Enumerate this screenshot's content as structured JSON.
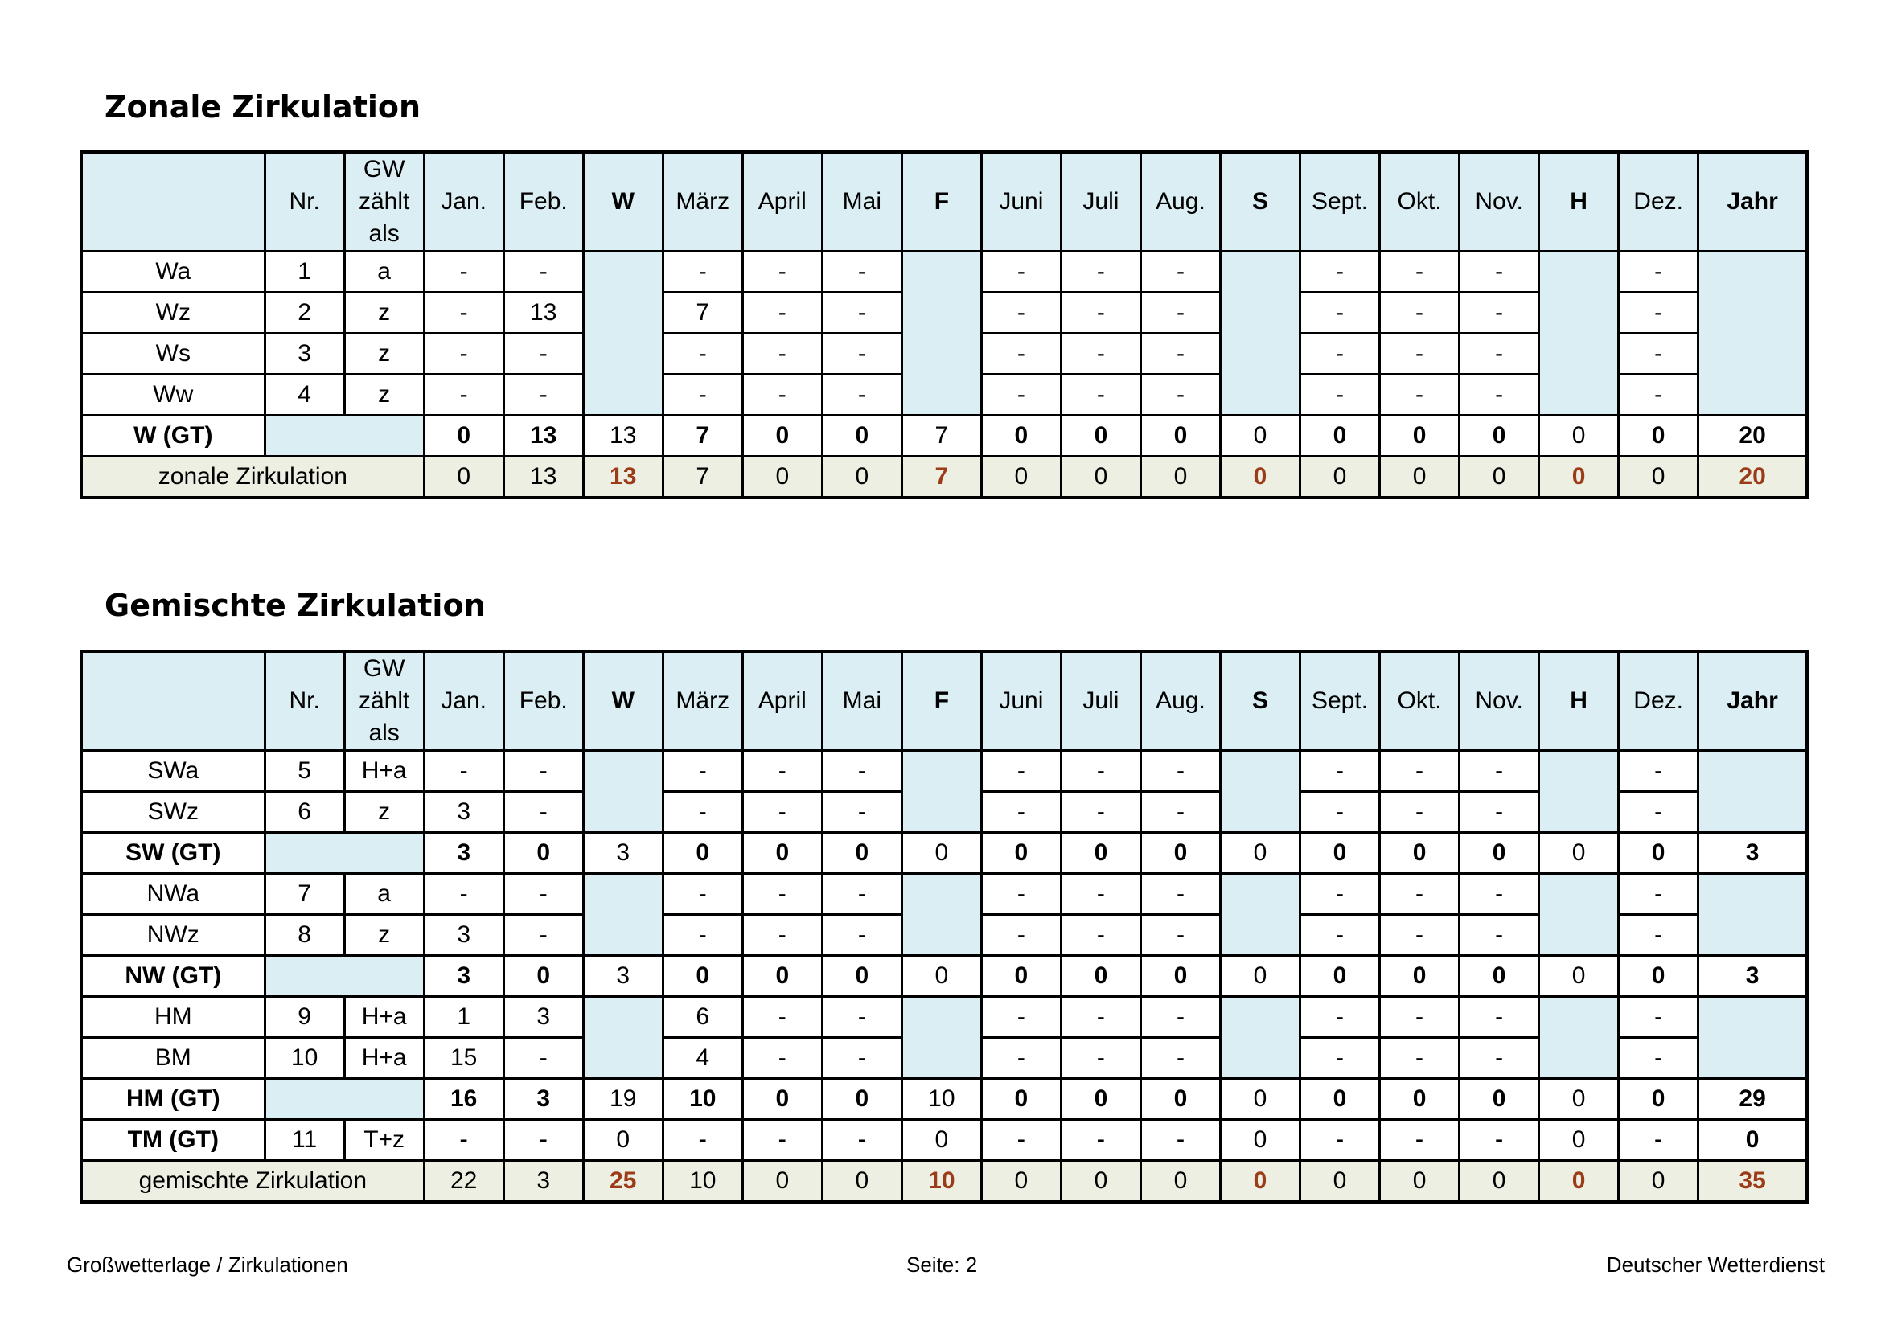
{
  "sections": [
    {
      "title": "Zonale Zirkulation",
      "header": [
        "",
        "Nr.",
        "GW zählt als",
        "Jan.",
        "Feb.",
        "W",
        "März",
        "April",
        "Mai",
        "F",
        "Juni",
        "Juli",
        "Aug.",
        "S",
        "Sept.",
        "Okt.",
        "Nov.",
        "H",
        "Dez.",
        "Jahr"
      ],
      "gw_lines": [
        "GW",
        "zählt",
        "als"
      ],
      "rows": [
        {
          "type": "normal",
          "label": "Wa",
          "nr": "1",
          "gw": "a",
          "months": [
            "-",
            "-",
            "-",
            "-",
            "-",
            "-",
            "-",
            "-",
            "-",
            "-",
            "-",
            "-"
          ]
        },
        {
          "type": "normal",
          "label": "Wz",
          "nr": "2",
          "gw": "z",
          "months": [
            "-",
            "13",
            "7",
            "-",
            "-",
            "-",
            "-",
            "-",
            "-",
            "-",
            "-",
            "-"
          ]
        },
        {
          "type": "normal",
          "label": "Ws",
          "nr": "3",
          "gw": "z",
          "months": [
            "-",
            "-",
            "-",
            "-",
            "-",
            "-",
            "-",
            "-",
            "-",
            "-",
            "-",
            "-"
          ]
        },
        {
          "type": "normal",
          "label": "Ww",
          "nr": "4",
          "gw": "z",
          "months": [
            "-",
            "-",
            "-",
            "-",
            "-",
            "-",
            "-",
            "-",
            "-",
            "-",
            "-",
            "-"
          ]
        },
        {
          "type": "gt",
          "label": "W (GT)",
          "values": [
            "0",
            "13",
            "13",
            "7",
            "0",
            "0",
            "7",
            "0",
            "0",
            "0",
            "0",
            "0",
            "0",
            "0",
            "0",
            "0",
            "20"
          ]
        },
        {
          "type": "total",
          "label": "zonale Zirkulation",
          "values": [
            "0",
            "13",
            "13",
            "7",
            "0",
            "0",
            "7",
            "0",
            "0",
            "0",
            "0",
            "0",
            "0",
            "0",
            "0",
            "0",
            "20"
          ]
        }
      ]
    },
    {
      "title": "Gemischte Zirkulation",
      "header": [
        "",
        "Nr.",
        "GW zählt als",
        "Jan.",
        "Feb.",
        "W",
        "März",
        "April",
        "Mai",
        "F",
        "Juni",
        "Juli",
        "Aug.",
        "S",
        "Sept.",
        "Okt.",
        "Nov.",
        "H",
        "Dez.",
        "Jahr"
      ],
      "gw_lines": [
        "GW",
        "zählt",
        "als"
      ],
      "rows": [
        {
          "type": "normal",
          "label": "SWa",
          "nr": "5",
          "gw": "H+a",
          "months": [
            "-",
            "-",
            "-",
            "-",
            "-",
            "-",
            "-",
            "-",
            "-",
            "-",
            "-",
            "-"
          ]
        },
        {
          "type": "normal",
          "label": "SWz",
          "nr": "6",
          "gw": "z",
          "months": [
            "3",
            "-",
            "-",
            "-",
            "-",
            "-",
            "-",
            "-",
            "-",
            "-",
            "-",
            "-"
          ]
        },
        {
          "type": "gt",
          "label": "SW (GT)",
          "values": [
            "3",
            "0",
            "3",
            "0",
            "0",
            "0",
            "0",
            "0",
            "0",
            "0",
            "0",
            "0",
            "0",
            "0",
            "0",
            "0",
            "3"
          ]
        },
        {
          "type": "normal",
          "label": "NWa",
          "nr": "7",
          "gw": "a",
          "months": [
            "-",
            "-",
            "-",
            "-",
            "-",
            "-",
            "-",
            "-",
            "-",
            "-",
            "-",
            "-"
          ]
        },
        {
          "type": "normal",
          "label": "NWz",
          "nr": "8",
          "gw": "z",
          "months": [
            "3",
            "-",
            "-",
            "-",
            "-",
            "-",
            "-",
            "-",
            "-",
            "-",
            "-",
            "-"
          ]
        },
        {
          "type": "gt",
          "label": "NW (GT)",
          "values": [
            "3",
            "0",
            "3",
            "0",
            "0",
            "0",
            "0",
            "0",
            "0",
            "0",
            "0",
            "0",
            "0",
            "0",
            "0",
            "0",
            "3"
          ]
        },
        {
          "type": "normal",
          "label": "HM",
          "nr": "9",
          "gw": "H+a",
          "months": [
            "1",
            "3",
            "6",
            "-",
            "-",
            "-",
            "-",
            "-",
            "-",
            "-",
            "-",
            "-"
          ]
        },
        {
          "type": "normal",
          "label": "BM",
          "nr": "10",
          "gw": "H+a",
          "months": [
            "15",
            "-",
            "4",
            "-",
            "-",
            "-",
            "-",
            "-",
            "-",
            "-",
            "-",
            "-"
          ]
        },
        {
          "type": "gt",
          "label": "HM (GT)",
          "values": [
            "16",
            "3",
            "19",
            "10",
            "0",
            "0",
            "10",
            "0",
            "0",
            "0",
            "0",
            "0",
            "0",
            "0",
            "0",
            "0",
            "29"
          ]
        },
        {
          "type": "tm",
          "label": "TM (GT)",
          "nr": "11",
          "gw": "T+z",
          "values": [
            "-",
            "-",
            "0",
            "-",
            "-",
            "-",
            "0",
            "-",
            "-",
            "-",
            "0",
            "-",
            "-",
            "-",
            "0",
            "-",
            "0"
          ]
        },
        {
          "type": "total",
          "label": "gemischte Zirkulation",
          "values": [
            "22",
            "3",
            "25",
            "10",
            "0",
            "0",
            "10",
            "0",
            "0",
            "0",
            "0",
            "0",
            "0",
            "0",
            "0",
            "0",
            "35"
          ]
        }
      ]
    }
  ],
  "colors": {
    "header_fill": "#daeef3",
    "total_row_fill": "#eeefe3",
    "accent_text": "#9c3b17"
  },
  "footer": {
    "left": "Großwetterlage / Zirkulationen",
    "center": "Seite: 2",
    "right": "Deutscher Wetterdienst"
  }
}
